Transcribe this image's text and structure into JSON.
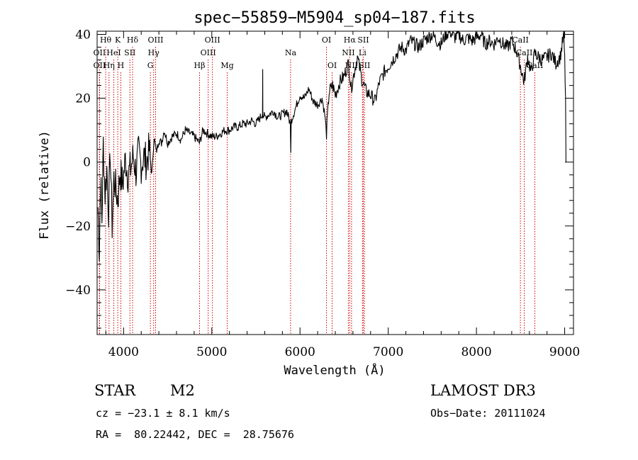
{
  "chart_data": {
    "type": "line",
    "title": "spec−55859−M5904_sp04−187.fits",
    "xlabel": "Wavelength (Å)",
    "ylabel": "Flux (relative)",
    "xlim": [
      3700,
      9100
    ],
    "ylim": [
      -54,
      41
    ],
    "x_ticks": [
      4000,
      5000,
      6000,
      7000,
      8000,
      9000
    ],
    "y_ticks": [
      -40,
      -20,
      0,
      20,
      40
    ],
    "y_tick_labels": [
      "−40",
      "−20",
      "0",
      "20",
      "40"
    ],
    "x_minor_step": 200,
    "y_minor_step": 4,
    "series": [
      {
        "name": "spectrum",
        "color": "#000000",
        "x": [
          3710,
          3725,
          3740,
          3755,
          3770,
          3790,
          3810,
          3830,
          3850,
          3870,
          3890,
          3910,
          3935,
          3960,
          3990,
          4020,
          4050,
          4080,
          4110,
          4140,
          4170,
          4200,
          4230,
          4260,
          4290,
          4320,
          4345,
          4370,
          4400,
          4430,
          4460,
          4500,
          4550,
          4600,
          4650,
          4700,
          4750,
          4800,
          4860,
          4900,
          4950,
          5000,
          5050,
          5100,
          5150,
          5200,
          5250,
          5300,
          5350,
          5400,
          5450,
          5500,
          5550,
          5575,
          5577,
          5579,
          5600,
          5650,
          5700,
          5750,
          5800,
          5850,
          5890,
          5895,
          5900,
          5950,
          6000,
          6050,
          6100,
          6150,
          6200,
          6250,
          6280,
          6300,
          6330,
          6370,
          6400,
          6450,
          6500,
          6550,
          6580,
          6620,
          6650,
          6700,
          6750,
          6800,
          6850,
          6900,
          6950,
          7000,
          7050,
          7100,
          7150,
          7200,
          7250,
          7300,
          7350,
          7400,
          7450,
          7500,
          7550,
          7600,
          7650,
          7700,
          7750,
          7800,
          7850,
          7900,
          7950,
          8000,
          8050,
          8100,
          8150,
          8200,
          8250,
          8300,
          8350,
          8400,
          8450,
          8500,
          8540,
          8580,
          8620,
          8660,
          8700,
          8750,
          8800,
          8850,
          8900,
          8950,
          8990,
          9000,
          9010,
          9015
        ],
        "values": [
          -14,
          -28,
          -5,
          -18,
          6,
          -10,
          -2,
          -15,
          3,
          -20,
          -5,
          -8,
          -12,
          -3,
          -7,
          1,
          -4,
          -2,
          2,
          -3,
          3,
          -1,
          2,
          0,
          4,
          -4,
          8,
          3,
          7,
          6,
          10,
          6,
          8,
          9,
          7,
          10,
          9,
          8,
          6,
          10,
          9,
          8,
          8,
          9,
          10,
          10,
          11,
          11,
          12,
          12,
          13,
          12,
          14,
          15,
          29,
          15,
          14,
          15,
          16,
          14,
          15,
          16,
          12,
          3,
          13,
          17,
          21,
          20,
          23,
          19,
          18,
          20,
          15,
          9,
          22,
          24,
          21,
          25,
          27,
          31,
          23,
          29,
          33,
          26,
          22,
          21,
          19,
          25,
          28,
          30,
          32,
          34,
          36,
          35,
          38,
          37,
          36,
          38,
          39,
          40,
          38,
          37,
          40,
          41,
          39,
          40,
          38,
          39,
          38,
          39,
          40,
          37,
          38,
          37,
          39,
          37,
          36,
          38,
          35,
          30,
          25,
          33,
          28,
          34,
          33,
          32,
          33,
          34,
          31,
          33,
          40,
          32,
          20,
          0
        ]
      }
    ],
    "lines": [
      {
        "name": "OII",
        "wave": 3727,
        "row": 2
      },
      {
        "name": "Hθ",
        "wave": 3797,
        "row": 0
      },
      {
        "name": "OII",
        "wave": 3727,
        "row": 1
      },
      {
        "name": "Hη",
        "wave": 3835,
        "row": 2
      },
      {
        "name": "HeI",
        "wave": 3889,
        "row": 1
      },
      {
        "name": "K",
        "wave": 3934,
        "row": 0
      },
      {
        "name": "H",
        "wave": 3969,
        "row": 2
      },
      {
        "name": "SII",
        "wave": 4072,
        "row": 1
      },
      {
        "name": "Hδ",
        "wave": 4102,
        "row": 0
      },
      {
        "name": "OIII",
        "wave": 4363,
        "row": 0
      },
      {
        "name": "Hγ",
        "wave": 4341,
        "row": 1
      },
      {
        "name": "G",
        "wave": 4304,
        "row": 2
      },
      {
        "name": "Hβ",
        "wave": 4861,
        "row": 2
      },
      {
        "name": "OIII",
        "wave": 5007,
        "row": 0
      },
      {
        "name": "OIII",
        "wave": 4959,
        "row": 1
      },
      {
        "name": "Mg",
        "wave": 5175,
        "row": 2
      },
      {
        "name": "Na",
        "wave": 5893,
        "row": 1
      },
      {
        "name": "OI",
        "wave": 6300,
        "row": 0
      },
      {
        "name": "OI",
        "wave": 6364,
        "row": 2
      },
      {
        "name": "Hα",
        "wave": 6563,
        "row": 0
      },
      {
        "name": "NII",
        "wave": 6548,
        "row": 1
      },
      {
        "name": "NII",
        "wave": 6584,
        "row": 2
      },
      {
        "name": "SII",
        "wave": 6717,
        "row": 0
      },
      {
        "name": "Li",
        "wave": 6708,
        "row": 1
      },
      {
        "name": "SII",
        "wave": 6731,
        "row": 2
      },
      {
        "name": "CaII",
        "wave": 8498,
        "row": 0
      },
      {
        "name": "CaII",
        "wave": 8542,
        "row": 1
      },
      {
        "name": "CaII",
        "wave": 8662,
        "row": 2
      }
    ],
    "line_color": "#cc0000"
  },
  "info": {
    "object_class": "STAR",
    "subclass": "M2",
    "survey": "LAMOST DR3",
    "cz": "cz = −23.1 ± 8.1 km/s",
    "obs_date": "Obs−Date: 20111024",
    "coords": "RA =  80.22442, DEC =  28.75676"
  }
}
